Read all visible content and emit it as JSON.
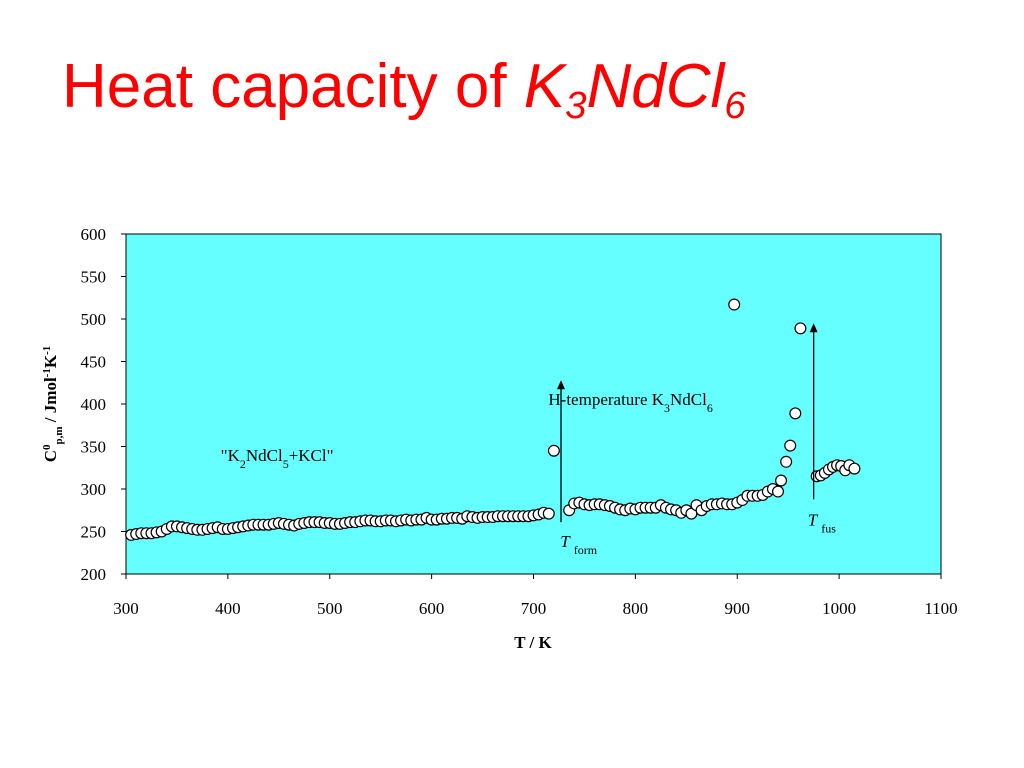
{
  "slide": {
    "title_text": "Heat capacity of ",
    "formula": [
      {
        "t": "K",
        "sub": false
      },
      {
        "t": "3",
        "sub": true
      },
      {
        "t": "NdCl",
        "sub": false
      },
      {
        "t": "6",
        "sub": true
      }
    ],
    "title_color": "#ff0000"
  },
  "chart_data": {
    "type": "scatter",
    "plot_background": "#66ffff",
    "grid": false,
    "xlim": [
      300,
      1100
    ],
    "ylim": [
      200,
      600
    ],
    "x_ticks": [
      300,
      400,
      500,
      600,
      700,
      800,
      900,
      1000,
      1100
    ],
    "y_ticks": [
      200,
      250,
      300,
      350,
      400,
      450,
      500,
      550,
      600
    ],
    "xlabel": "T / K",
    "ylabel": [
      {
        "t": "C",
        "pos": "base"
      },
      {
        "t": "0",
        "pos": "sup"
      },
      {
        "t": "p,m",
        "pos": "sub"
      },
      {
        "t": " / Jmol",
        "pos": "base"
      },
      {
        "t": "-1",
        "pos": "sup"
      },
      {
        "t": "K",
        "pos": "base"
      },
      {
        "t": "-1",
        "pos": "sup"
      }
    ],
    "points": [
      [
        305,
        246
      ],
      [
        310,
        247
      ],
      [
        315,
        248
      ],
      [
        320,
        248
      ],
      [
        325,
        248
      ],
      [
        330,
        249
      ],
      [
        335,
        250
      ],
      [
        340,
        253
      ],
      [
        345,
        256
      ],
      [
        350,
        256
      ],
      [
        355,
        255
      ],
      [
        360,
        254
      ],
      [
        365,
        253
      ],
      [
        370,
        252
      ],
      [
        375,
        252
      ],
      [
        380,
        253
      ],
      [
        385,
        254
      ],
      [
        390,
        255
      ],
      [
        395,
        253
      ],
      [
        400,
        253
      ],
      [
        405,
        254
      ],
      [
        410,
        255
      ],
      [
        415,
        256
      ],
      [
        420,
        257
      ],
      [
        425,
        258
      ],
      [
        430,
        258
      ],
      [
        435,
        258
      ],
      [
        440,
        258
      ],
      [
        445,
        259
      ],
      [
        450,
        260
      ],
      [
        455,
        259
      ],
      [
        460,
        258
      ],
      [
        465,
        257
      ],
      [
        470,
        259
      ],
      [
        475,
        260
      ],
      [
        480,
        261
      ],
      [
        485,
        261
      ],
      [
        490,
        261
      ],
      [
        495,
        260
      ],
      [
        500,
        260
      ],
      [
        505,
        259
      ],
      [
        510,
        259
      ],
      [
        515,
        260
      ],
      [
        520,
        261
      ],
      [
        525,
        261
      ],
      [
        530,
        262
      ],
      [
        535,
        263
      ],
      [
        540,
        263
      ],
      [
        545,
        262
      ],
      [
        550,
        262
      ],
      [
        555,
        263
      ],
      [
        560,
        263
      ],
      [
        565,
        262
      ],
      [
        570,
        263
      ],
      [
        575,
        264
      ],
      [
        580,
        263
      ],
      [
        585,
        264
      ],
      [
        590,
        264
      ],
      [
        595,
        266
      ],
      [
        600,
        264
      ],
      [
        605,
        264
      ],
      [
        610,
        265
      ],
      [
        615,
        265
      ],
      [
        620,
        266
      ],
      [
        625,
        266
      ],
      [
        630,
        265
      ],
      [
        635,
        268
      ],
      [
        640,
        267
      ],
      [
        645,
        266
      ],
      [
        650,
        267
      ],
      [
        655,
        267
      ],
      [
        660,
        267
      ],
      [
        665,
        268
      ],
      [
        670,
        268
      ],
      [
        675,
        268
      ],
      [
        680,
        268
      ],
      [
        685,
        268
      ],
      [
        690,
        268
      ],
      [
        695,
        268
      ],
      [
        700,
        269
      ],
      [
        705,
        270
      ],
      [
        710,
        272
      ],
      [
        715,
        271
      ],
      [
        720,
        345
      ],
      [
        735,
        275
      ],
      [
        740,
        283
      ],
      [
        745,
        284
      ],
      [
        750,
        282
      ],
      [
        755,
        281
      ],
      [
        760,
        282
      ],
      [
        765,
        282
      ],
      [
        770,
        281
      ],
      [
        775,
        280
      ],
      [
        780,
        278
      ],
      [
        785,
        276
      ],
      [
        790,
        275
      ],
      [
        795,
        277
      ],
      [
        800,
        276
      ],
      [
        805,
        278
      ],
      [
        810,
        278
      ],
      [
        815,
        278
      ],
      [
        820,
        278
      ],
      [
        825,
        281
      ],
      [
        830,
        278
      ],
      [
        835,
        276
      ],
      [
        840,
        275
      ],
      [
        845,
        272
      ],
      [
        850,
        275
      ],
      [
        855,
        271
      ],
      [
        860,
        281
      ],
      [
        865,
        275
      ],
      [
        870,
        280
      ],
      [
        875,
        282
      ],
      [
        880,
        282
      ],
      [
        885,
        283
      ],
      [
        890,
        282
      ],
      [
        895,
        282
      ],
      [
        897,
        517
      ],
      [
        900,
        284
      ],
      [
        905,
        287
      ],
      [
        910,
        292
      ],
      [
        915,
        292
      ],
      [
        920,
        292
      ],
      [
        925,
        293
      ],
      [
        930,
        297
      ],
      [
        935,
        300
      ],
      [
        940,
        297
      ],
      [
        943,
        310
      ],
      [
        948,
        332
      ],
      [
        952,
        351
      ],
      [
        957,
        389
      ],
      [
        962,
        489
      ],
      [
        978,
        315
      ],
      [
        982,
        316
      ],
      [
        986,
        319
      ],
      [
        990,
        323
      ],
      [
        994,
        326
      ],
      [
        998,
        328
      ],
      [
        1002,
        327
      ],
      [
        1006,
        322
      ],
      [
        1010,
        328
      ],
      [
        1015,
        324
      ]
    ],
    "annotations": [
      {
        "type": "text",
        "text": "\"K2NdCl5+KCl\"",
        "x": 440,
        "y": 333
      },
      {
        "type": "arrow",
        "x": 727,
        "y_from": 261,
        "y_to": 428
      },
      {
        "type": "text",
        "text": "H-temperature K3NdCl6",
        "x": 801,
        "y": 399
      },
      {
        "type": "text",
        "text": "T form",
        "x": 741,
        "y": 232
      },
      {
        "type": "arrow",
        "x": 975,
        "y_from": 288,
        "y_to": 495
      },
      {
        "type": "text",
        "text": "T fus",
        "x": 983,
        "y": 257
      }
    ]
  },
  "plot_labels": {
    "k2ndcl5_label": [
      {
        "t": "\"K",
        "sub": false
      },
      {
        "t": "2",
        "sub": true
      },
      {
        "t": "NdCl",
        "sub": false
      },
      {
        "t": "5",
        "sub": true
      },
      {
        "t": "+KCl\"",
        "sub": false
      }
    ],
    "h_temp_label": [
      {
        "t": "H-temperature K",
        "sub": false
      },
      {
        "t": "3",
        "sub": true
      },
      {
        "t": "NdCl",
        "sub": false
      },
      {
        "t": "6",
        "sub": true
      }
    ],
    "t_form": {
      "main": "T",
      "sub": "form"
    },
    "t_fus": {
      "main": "T",
      "sub": "fus"
    }
  }
}
